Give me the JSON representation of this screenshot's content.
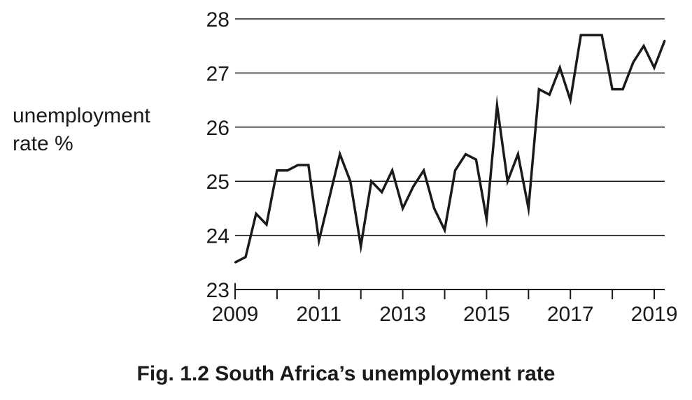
{
  "chart_data": {
    "type": "line",
    "ylabel_lines": [
      "unemployment",
      "rate %"
    ],
    "xlabel": "",
    "caption": "Fig. 1.2 South Africa’s unemployment rate",
    "xlim": [
      2009,
      2019.25
    ],
    "ylim": [
      23,
      28
    ],
    "yticks": [
      23,
      24,
      25,
      26,
      27,
      28
    ],
    "xticks": [
      2009,
      2011,
      2013,
      2015,
      2017,
      2019
    ],
    "xtick_labels": [
      "2009",
      "2011",
      "2013",
      "2015",
      "2017",
      "2019"
    ],
    "grid": "horizontal",
    "colors": {
      "line": "#1a1a1a",
      "grid": "#1a1a1a"
    },
    "series": [
      {
        "x": [
          2009.0,
          2009.25,
          2009.5,
          2009.75,
          2010.0,
          2010.25,
          2010.5,
          2010.75,
          2011.0,
          2011.25,
          2011.5,
          2011.75,
          2012.0,
          2012.25,
          2012.5,
          2012.75,
          2013.0,
          2013.25,
          2013.5,
          2013.75,
          2014.0,
          2014.25,
          2014.5,
          2014.75,
          2015.0,
          2015.25,
          2015.5,
          2015.75,
          2016.0,
          2016.25,
          2016.5,
          2016.75,
          2017.0,
          2017.25,
          2017.5,
          2017.75,
          2018.0,
          2018.25,
          2018.5,
          2018.75,
          2019.0,
          2019.25
        ],
        "values": [
          23.5,
          23.6,
          24.4,
          24.2,
          25.2,
          25.2,
          25.3,
          25.3,
          23.9,
          24.7,
          25.5,
          25.0,
          23.8,
          25.0,
          24.8,
          25.2,
          24.5,
          24.9,
          25.2,
          24.5,
          24.1,
          25.2,
          25.5,
          25.4,
          24.3,
          26.4,
          25.0,
          25.5,
          24.5,
          26.7,
          26.6,
          27.1,
          26.5,
          27.7,
          27.7,
          27.7,
          26.7,
          26.7,
          27.2,
          27.5,
          27.1,
          27.6
        ]
      }
    ]
  }
}
